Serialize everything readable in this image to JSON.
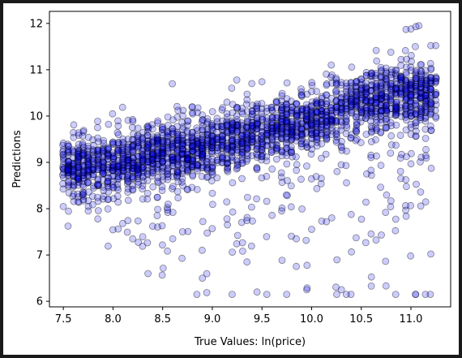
{
  "chart_data": {
    "type": "scatter",
    "title": "",
    "xlabel": "True Values: ln(price)",
    "ylabel": "Predictions",
    "xlim": [
      7.36,
      11.4
    ],
    "ylim": [
      5.88,
      12.26
    ],
    "xticks": [
      "7.5",
      "8.0",
      "8.5",
      "9.0",
      "9.5",
      "10.0",
      "10.5",
      "11.0"
    ],
    "yticks": [
      "6",
      "7",
      "8",
      "9",
      "10",
      "11",
      "12"
    ],
    "grid": false,
    "legend": "none",
    "point_color": "#0000ff",
    "point_edge_color": "#000000",
    "point_alpha": 0.2,
    "trend": {
      "x": [
        7.5,
        8.0,
        8.5,
        9.0,
        9.5,
        10.0,
        10.5,
        11.0,
        11.2
      ],
      "y": [
        8.85,
        9.0,
        9.15,
        9.4,
        9.65,
        9.95,
        10.3,
        10.45,
        10.5
      ]
    },
    "outliers": [
      {
        "x": 11.05,
        "y": 11.93
      },
      {
        "x": 11.08,
        "y": 11.95
      },
      {
        "x": 11.0,
        "y": 11.88
      },
      {
        "x": 10.95,
        "y": 11.87
      },
      {
        "x": 11.2,
        "y": 11.52
      },
      {
        "x": 11.25,
        "y": 11.52
      },
      {
        "x": 10.3,
        "y": 6.25
      },
      {
        "x": 8.9,
        "y": 6.5
      },
      {
        "x": 9.45,
        "y": 6.2
      }
    ]
  }
}
